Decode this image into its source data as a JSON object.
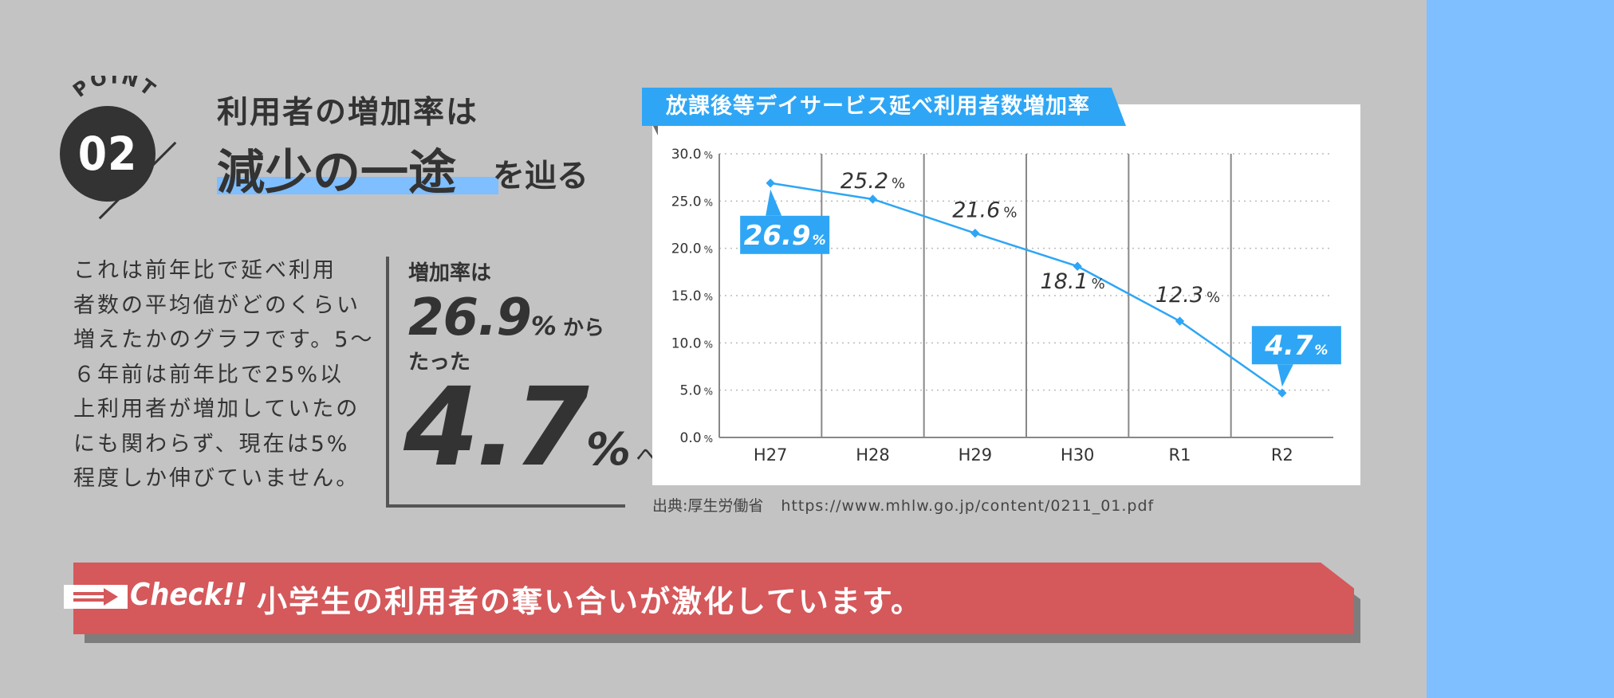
{
  "point": {
    "label": "POINT",
    "number": "02"
  },
  "heading": {
    "line1": "利用者の増加率は",
    "emphasis": "減少の一途",
    "suffix": "を辿る"
  },
  "body_lines": [
    "これは前年比で延べ利用",
    "者数の平均値がどのくらい",
    "増えたかのグラフです。5〜",
    "６年前は前年比で25%以",
    "上利用者が増加していたの",
    "にも関わらず、現在は5%",
    "程度しか伸びていません。"
  ],
  "callout": {
    "line1": "増加率は",
    "value1": "26.9",
    "unit1": "%",
    "suffix1": "から",
    "line3": "たった",
    "value2": "4.7",
    "unit2": "%",
    "suffix2": "へ"
  },
  "colors": {
    "accent": "#2ea6f5",
    "banner": "#d5585b",
    "strip": "#7fbeff",
    "background": "#c3c3c3"
  },
  "chart_data": {
    "type": "line",
    "title": "放課後等デイサービス延べ利用者数増加率",
    "categories": [
      "H27",
      "H28",
      "H29",
      "H30",
      "R1",
      "R2"
    ],
    "values": [
      26.9,
      25.2,
      21.6,
      18.1,
      12.3,
      4.7
    ],
    "data_labels": [
      "26.9",
      "25.2",
      "21.6",
      "18.1",
      "12.3",
      "4.7"
    ],
    "value_unit": "%",
    "y_ticks": [
      "0.0",
      "5.0",
      "10.0",
      "15.0",
      "20.0",
      "25.0",
      "30.0"
    ],
    "ylim": [
      0,
      30
    ],
    "xlabel": "",
    "ylabel": "",
    "grid": true,
    "highlighted_points": [
      "H27",
      "R2"
    ],
    "line_color": "#2ea6f5"
  },
  "source": {
    "label": "出典:厚生労働省",
    "url": "https://www.mhlw.go.jp/content/0211_01.pdf"
  },
  "check": {
    "label": "Check!!",
    "message": "小学生の利用者の奪い合いが激化しています。"
  }
}
